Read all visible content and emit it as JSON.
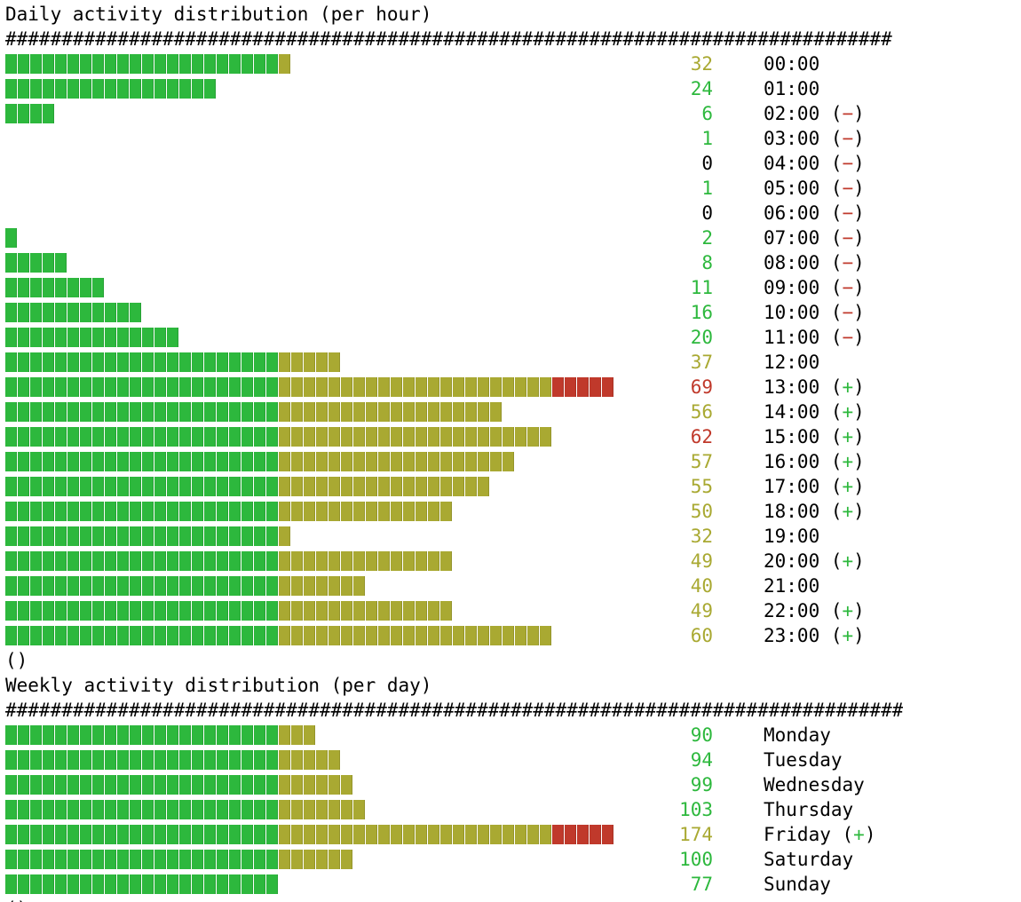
{
  "colors": {
    "green": "#2db83d",
    "olive": "#a9a932",
    "red": "#c0392b",
    "cell_border": "#1c9a2a"
  },
  "thresholds": {
    "green_cells": 22,
    "olive_cells": 44
  },
  "chart_data": [
    {
      "type": "bar",
      "orientation": "horizontal",
      "title": "Daily activity distribution (per hour)",
      "rule": "###############################################################################",
      "footer": "()",
      "categories": [
        "00:00",
        "01:00",
        "02:00",
        "03:00",
        "04:00",
        "05:00",
        "06:00",
        "07:00",
        "08:00",
        "09:00",
        "10:00",
        "11:00",
        "12:00",
        "13:00",
        "14:00",
        "15:00",
        "16:00",
        "17:00",
        "18:00",
        "19:00",
        "20:00",
        "21:00",
        "22:00",
        "23:00"
      ],
      "values": [
        32,
        24,
        6,
        1,
        0,
        1,
        0,
        2,
        8,
        11,
        16,
        20,
        37,
        69,
        56,
        62,
        57,
        55,
        50,
        32,
        49,
        40,
        49,
        60
      ],
      "bar_cells": [
        23,
        17,
        4,
        0,
        0,
        0,
        0,
        1,
        5,
        8,
        11,
        14,
        27,
        49,
        40,
        44,
        41,
        39,
        36,
        23,
        36,
        29,
        36,
        44
      ],
      "value_colors": [
        "olive",
        "green",
        "green",
        "green",
        "black",
        "green",
        "black",
        "green",
        "green",
        "green",
        "green",
        "green",
        "olive",
        "red",
        "olive",
        "red",
        "olive",
        "olive",
        "olive",
        "olive",
        "olive",
        "olive",
        "olive",
        "olive"
      ],
      "marks": [
        "",
        "",
        "−",
        "−",
        "−",
        "−",
        "−",
        "−",
        "−",
        "−",
        "−",
        "−",
        "",
        "+",
        "+",
        "+",
        "+",
        "+",
        "+",
        "",
        "+",
        "",
        "+",
        "+"
      ]
    },
    {
      "type": "bar",
      "orientation": "horizontal",
      "title": "Weekly activity distribution (per day)",
      "rule": "################################################################################",
      "footer": "()",
      "categories": [
        "Monday",
        "Tuesday",
        "Wednesday",
        "Thursday",
        "Friday",
        "Saturday",
        "Sunday"
      ],
      "values": [
        90,
        94,
        99,
        103,
        174,
        100,
        77
      ],
      "bar_cells": [
        25,
        27,
        28,
        29,
        49,
        28,
        22
      ],
      "value_colors": [
        "green",
        "green",
        "green",
        "green",
        "olive",
        "green",
        "green"
      ],
      "marks": [
        "",
        "",
        "",
        "",
        "+",
        "",
        ""
      ]
    }
  ]
}
